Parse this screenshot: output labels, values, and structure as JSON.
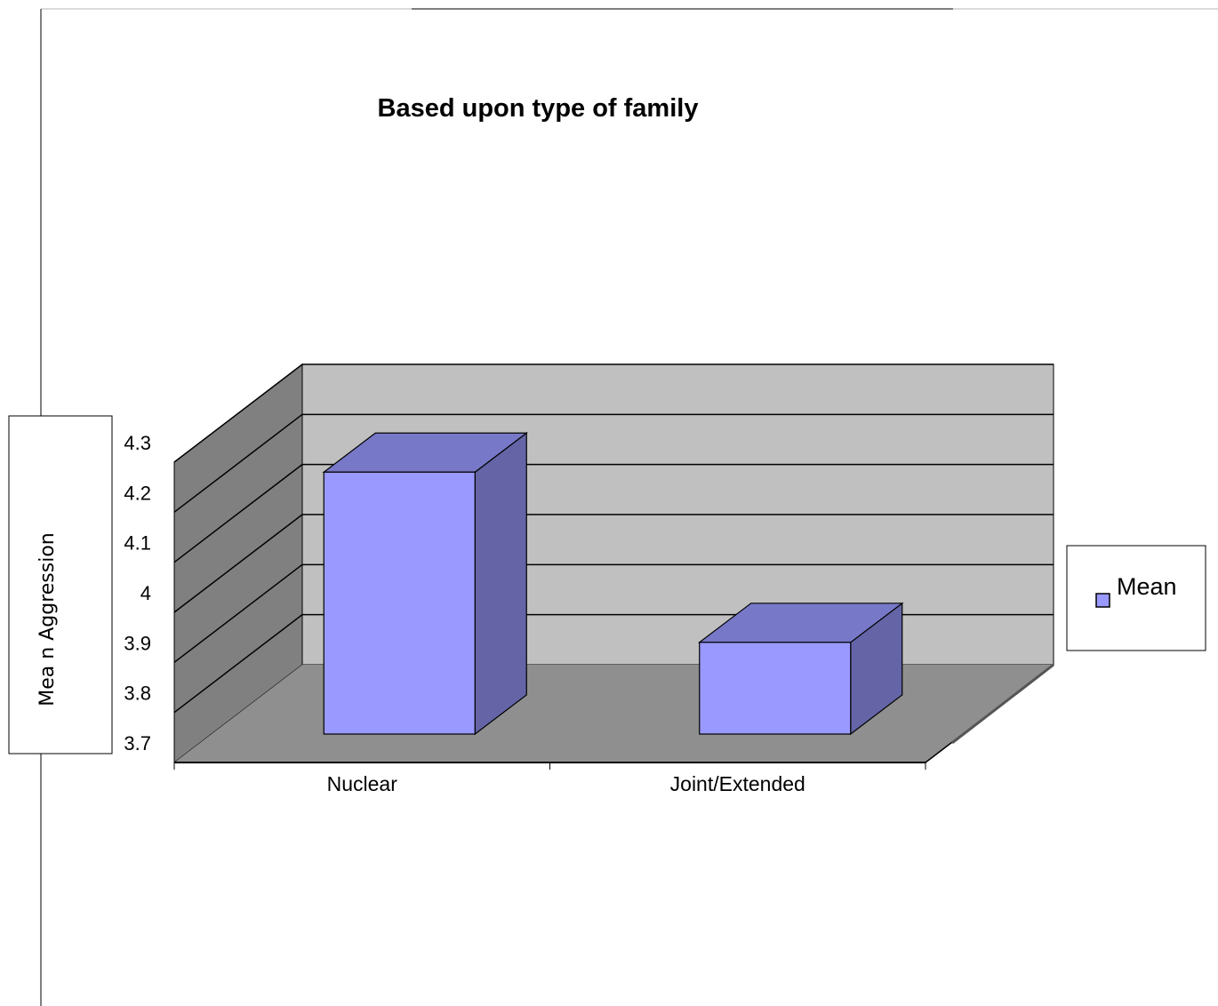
{
  "chart_data": {
    "type": "bar",
    "title": "Based upon type of family",
    "xlabel": "",
    "ylabel": "Mea n Aggression",
    "categories": [
      "Nuclear",
      "Joint/Extended"
    ],
    "series": [
      {
        "name": "Mean",
        "values": [
          4.28,
          3.94
        ]
      }
    ],
    "ylim": [
      3.7,
      4.3
    ],
    "yticks": [
      "3.7",
      "3.8",
      "3.9",
      "4",
      "4.1",
      "4.2",
      "4.3"
    ],
    "grid": true,
    "legend": "right",
    "style": "3d-column"
  },
  "colors": {
    "bar_front": "#9999ff",
    "bar_top": "#7878c8",
    "bar_side": "#6464a6",
    "back_wall": "#c0c0c0",
    "side_wall": "#808080",
    "floor": "#8f8f8f"
  }
}
